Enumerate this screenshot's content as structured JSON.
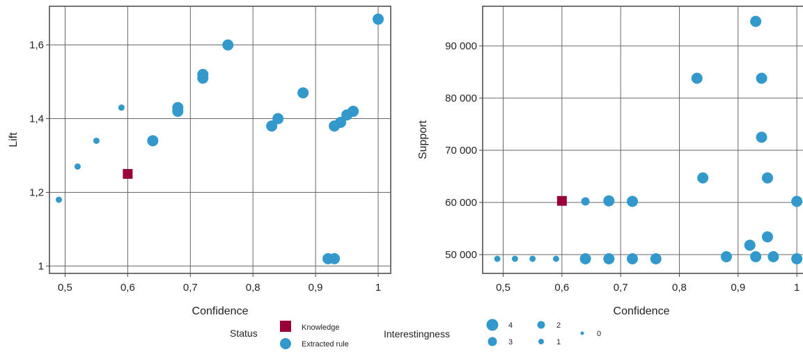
{
  "chart_data": [
    {
      "type": "scatter",
      "xlabel": "Confidence",
      "ylabel": "Lift",
      "xlim": [
        0.475,
        1.02
      ],
      "ylim": [
        0.98,
        1.705
      ],
      "xticks": [
        0.5,
        0.6,
        0.7,
        0.8,
        0.9,
        1
      ],
      "xtick_labels": [
        "0,5",
        "0,6",
        "0,7",
        "0,8",
        "0,9",
        "1"
      ],
      "yticks": [
        1,
        1.2,
        1.4,
        1.6
      ],
      "ytick_labels": [
        "1",
        "1,2",
        "1,4",
        "1,6"
      ],
      "grid": true,
      "points": [
        {
          "x": 0.49,
          "y": 1.18,
          "status": "Extracted rule",
          "interestingness": 1
        },
        {
          "x": 0.52,
          "y": 1.27,
          "status": "Extracted rule",
          "interestingness": 1
        },
        {
          "x": 0.55,
          "y": 1.34,
          "status": "Extracted rule",
          "interestingness": 1
        },
        {
          "x": 0.59,
          "y": 1.43,
          "status": "Extracted rule",
          "interestingness": 1
        },
        {
          "x": 0.6,
          "y": 1.25,
          "status": "Knowledge",
          "interestingness": null
        },
        {
          "x": 0.64,
          "y": 1.34,
          "status": "Extracted rule",
          "interestingness": 3
        },
        {
          "x": 0.68,
          "y": 1.43,
          "status": "Extracted rule",
          "interestingness": 3
        },
        {
          "x": 0.68,
          "y": 1.42,
          "status": "Extracted rule",
          "interestingness": 3
        },
        {
          "x": 0.72,
          "y": 1.52,
          "status": "Extracted rule",
          "interestingness": 3
        },
        {
          "x": 0.72,
          "y": 1.51,
          "status": "Extracted rule",
          "interestingness": 3
        },
        {
          "x": 0.76,
          "y": 1.6,
          "status": "Extracted rule",
          "interestingness": 3
        },
        {
          "x": 0.83,
          "y": 1.38,
          "status": "Extracted rule",
          "interestingness": 3
        },
        {
          "x": 0.84,
          "y": 1.4,
          "status": "Extracted rule",
          "interestingness": 3
        },
        {
          "x": 0.88,
          "y": 1.47,
          "status": "Extracted rule",
          "interestingness": 3
        },
        {
          "x": 0.92,
          "y": 1.02,
          "status": "Extracted rule",
          "interestingness": 3
        },
        {
          "x": 0.93,
          "y": 1.02,
          "status": "Extracted rule",
          "interestingness": 3
        },
        {
          "x": 0.93,
          "y": 1.38,
          "status": "Extracted rule",
          "interestingness": 3
        },
        {
          "x": 0.94,
          "y": 1.39,
          "status": "Extracted rule",
          "interestingness": 3
        },
        {
          "x": 0.95,
          "y": 1.41,
          "status": "Extracted rule",
          "interestingness": 3
        },
        {
          "x": 0.96,
          "y": 1.42,
          "status": "Extracted rule",
          "interestingness": 3
        },
        {
          "x": 1.0,
          "y": 1.67,
          "status": "Extracted rule",
          "interestingness": 3
        }
      ]
    },
    {
      "type": "scatter",
      "xlabel": "Confidence",
      "ylabel": "Support",
      "xlim": [
        0.465,
        1.02
      ],
      "ylim": [
        46400,
        97600
      ],
      "xticks": [
        0.5,
        0.6,
        0.7,
        0.8,
        0.9,
        1
      ],
      "xtick_labels": [
        "0,5",
        "0,6",
        "0,7",
        "0,8",
        "0,9",
        "1"
      ],
      "yticks": [
        50000,
        60000,
        70000,
        80000,
        90000
      ],
      "ytick_labels": [
        "50 000",
        "60 000",
        "70 000",
        "80 000",
        "90 000"
      ],
      "grid": true,
      "points": [
        {
          "x": 0.49,
          "y": 49200,
          "status": "Extracted rule",
          "interestingness": 1
        },
        {
          "x": 0.52,
          "y": 49200,
          "status": "Extracted rule",
          "interestingness": 1
        },
        {
          "x": 0.55,
          "y": 49200,
          "status": "Extracted rule",
          "interestingness": 1
        },
        {
          "x": 0.59,
          "y": 49200,
          "status": "Extracted rule",
          "interestingness": 1
        },
        {
          "x": 0.6,
          "y": 60300,
          "status": "Knowledge",
          "interestingness": null
        },
        {
          "x": 0.64,
          "y": 60200,
          "status": "Extracted rule",
          "interestingness": 2
        },
        {
          "x": 0.64,
          "y": 49200,
          "status": "Extracted rule",
          "interestingness": 3
        },
        {
          "x": 0.68,
          "y": 60300,
          "status": "Extracted rule",
          "interestingness": 3
        },
        {
          "x": 0.68,
          "y": 49200,
          "status": "Extracted rule",
          "interestingness": 3
        },
        {
          "x": 0.72,
          "y": 60200,
          "status": "Extracted rule",
          "interestingness": 3
        },
        {
          "x": 0.72,
          "y": 49200,
          "status": "Extracted rule",
          "interestingness": 3
        },
        {
          "x": 0.76,
          "y": 49200,
          "status": "Extracted rule",
          "interestingness": 3
        },
        {
          "x": 0.83,
          "y": 83800,
          "status": "Extracted rule",
          "interestingness": 3
        },
        {
          "x": 0.84,
          "y": 64700,
          "status": "Extracted rule",
          "interestingness": 3
        },
        {
          "x": 0.88,
          "y": 49600,
          "status": "Extracted rule",
          "interestingness": 3
        },
        {
          "x": 0.92,
          "y": 51800,
          "status": "Extracted rule",
          "interestingness": 3
        },
        {
          "x": 0.93,
          "y": 94700,
          "status": "Extracted rule",
          "interestingness": 3
        },
        {
          "x": 0.93,
          "y": 49600,
          "status": "Extracted rule",
          "interestingness": 3
        },
        {
          "x": 0.94,
          "y": 83800,
          "status": "Extracted rule",
          "interestingness": 3
        },
        {
          "x": 0.94,
          "y": 72500,
          "status": "Extracted rule",
          "interestingness": 3
        },
        {
          "x": 0.95,
          "y": 64700,
          "status": "Extracted rule",
          "interestingness": 3
        },
        {
          "x": 0.95,
          "y": 53400,
          "status": "Extracted rule",
          "interestingness": 3
        },
        {
          "x": 0.96,
          "y": 49600,
          "status": "Extracted rule",
          "interestingness": 3
        },
        {
          "x": 1.0,
          "y": 60200,
          "status": "Extracted rule",
          "interestingness": 3
        },
        {
          "x": 1.0,
          "y": 49200,
          "status": "Extracted rule",
          "interestingness": 3
        }
      ]
    }
  ],
  "legend": {
    "status_title": "Status",
    "status_items": [
      "Knowledge",
      "Extracted rule"
    ],
    "interestingness_title": "Interestingness",
    "interestingness_levels": [
      "4",
      "3",
      "2",
      "1",
      "0"
    ]
  },
  "colors": {
    "knowledge": "#99003a",
    "extracted_rule": "#3399cc",
    "grid": "#666666",
    "frame": "#444444"
  }
}
